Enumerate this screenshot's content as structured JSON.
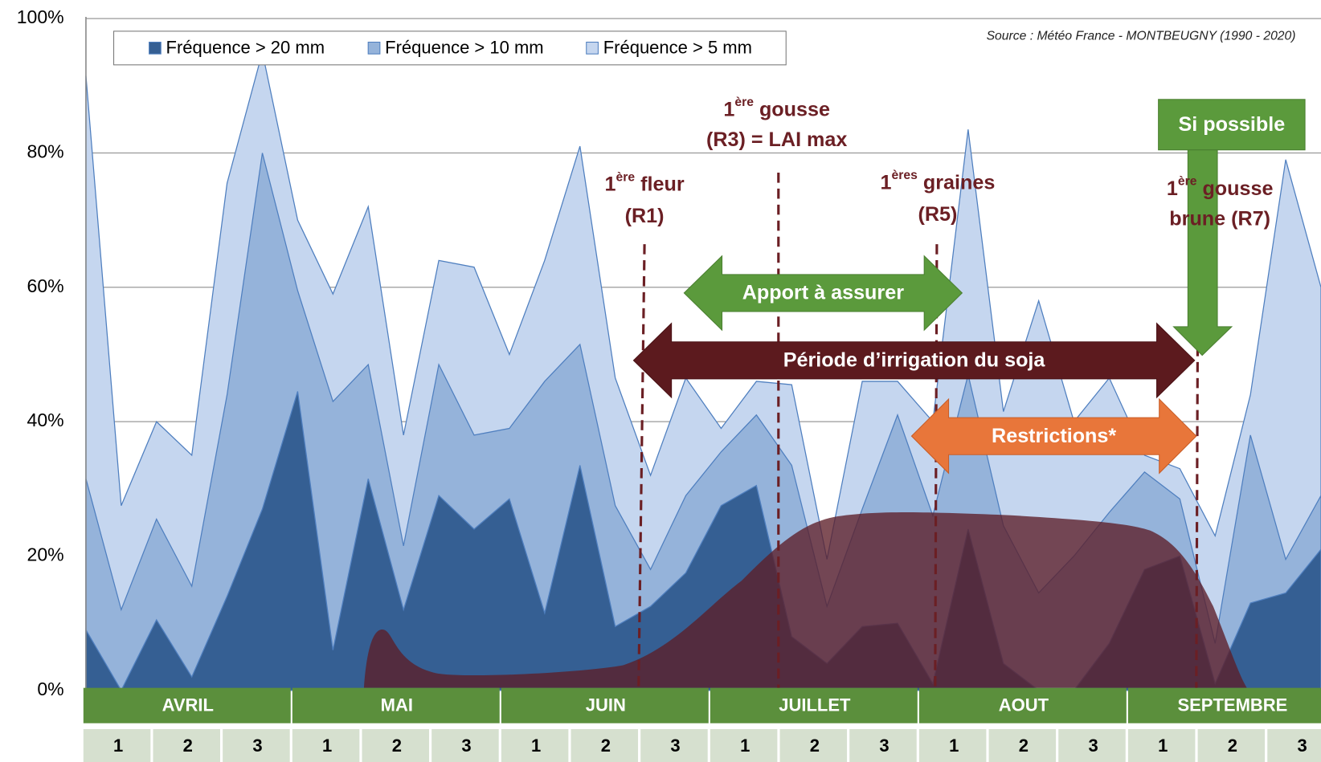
{
  "chart_data": {
    "type": "area",
    "source": "Source : Météo France - MONTBEUGNY (1990 - 2020)",
    "categories": [
      null,
      null,
      null,
      null,
      null,
      null,
      null,
      null,
      null,
      null,
      null,
      null,
      null,
      null,
      null,
      null,
      null,
      null,
      null,
      null,
      null,
      null,
      null,
      null,
      null,
      null,
      null,
      null,
      null,
      null,
      null,
      null,
      null,
      null,
      null,
      null
    ],
    "series": [
      {
        "name": "Fréquence > 20 mm",
        "color": "#355f93",
        "values": [
          9,
          0,
          10.5,
          2,
          14,
          27,
          44.5,
          6,
          31.5,
          12,
          29,
          24,
          28.5,
          11.5,
          33.5,
          9.5,
          12.5,
          17.5,
          27.5,
          30.5,
          8,
          4,
          9.5,
          10,
          1,
          24,
          4,
          0,
          0,
          7,
          18,
          20,
          1,
          13,
          14.5,
          21
        ]
      },
      {
        "name": "Fréquence > 10 mm",
        "color": "#95b3da",
        "values": [
          31.5,
          12,
          25.5,
          15.5,
          44,
          80,
          59.5,
          43,
          48.5,
          21.5,
          48.5,
          38,
          39,
          46,
          51.5,
          27.5,
          18,
          29,
          35.5,
          41,
          33.5,
          12.5,
          27,
          41,
          26,
          47,
          24.5,
          14.5,
          20,
          26.5,
          32.5,
          28.5,
          7,
          38,
          19.5,
          29
        ]
      },
      {
        "name": "Fréquence > 5 mm",
        "color": "#c5d6ef",
        "values": [
          91.5,
          27.5,
          40,
          35,
          75.5,
          95,
          70,
          59,
          72,
          38,
          64,
          63,
          50,
          64,
          81,
          46.5,
          32,
          46.5,
          39,
          46,
          45.5,
          19.5,
          46,
          46,
          40,
          83.5,
          41.5,
          58,
          40,
          46.5,
          35,
          33,
          23,
          44,
          79,
          60
        ]
      }
    ],
    "ylim": [
      0,
      100
    ],
    "yticks": [
      {
        "value": 0,
        "label": "0%"
      },
      {
        "value": 20,
        "label": "20%"
      },
      {
        "value": 40,
        "label": "40%"
      },
      {
        "value": 60,
        "label": "60%"
      },
      {
        "value": 80,
        "label": "80%"
      },
      {
        "value": 100,
        "label": "100%"
      }
    ],
    "grid": true,
    "months": [
      "AVRIL",
      "MAI",
      "JUIN",
      "JUILLET",
      "AOUT",
      "SEPTEMBRE"
    ],
    "decades": [
      "1",
      "2",
      "3"
    ],
    "stages": [
      {
        "line1": [
          "1",
          "ère",
          " fleur"
        ],
        "line2": "(R1)"
      },
      {
        "line1": [
          "1",
          "ère",
          " gousse"
        ],
        "line2": "(R3) = LAI max"
      },
      {
        "line1": [
          "1",
          "ères",
          " graines"
        ],
        "line2": "(R5)"
      },
      {
        "line1": [
          "1",
          "ère",
          " gousse"
        ],
        "line2": "brune (R7)"
      }
    ],
    "arrows": [
      "Apport à assurer",
      "Période d’irrigation du soja",
      "Restrictions*",
      "Si possible"
    ]
  }
}
